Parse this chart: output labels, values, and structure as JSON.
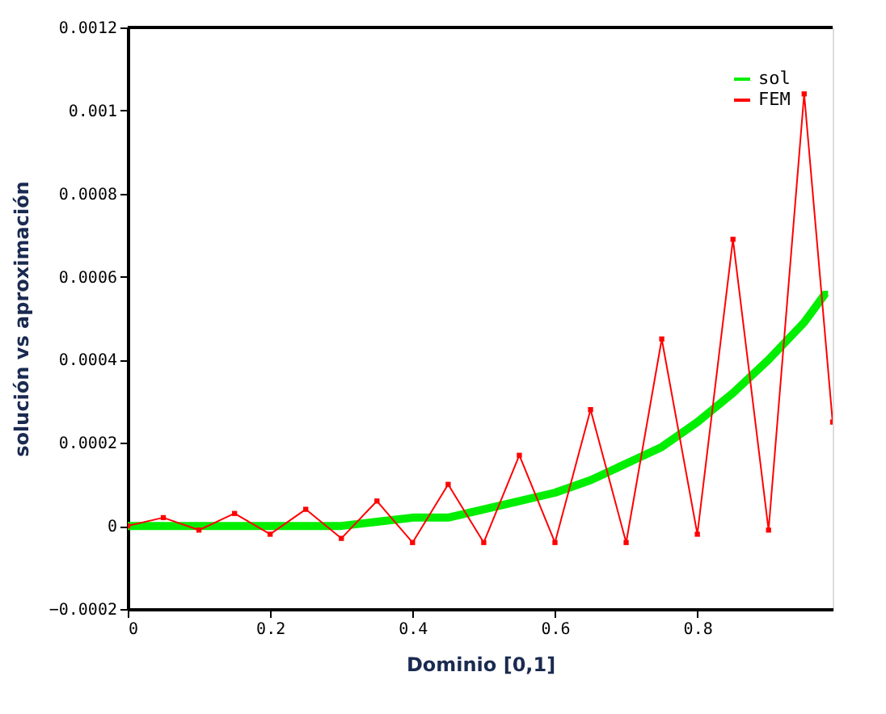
{
  "chart_data": {
    "type": "line",
    "xlabel": "Dominio [0,1]",
    "ylabel": "solución vs aproximación",
    "xlim": [
      0,
      0.99
    ],
    "xticks": [
      0,
      0.2,
      0.4,
      0.6,
      0.8
    ],
    "ylim": [
      -0.0002,
      0.0012
    ],
    "yticks": [
      -0.0002,
      0,
      0.0002,
      0.0004,
      0.0006,
      0.0008,
      0.001,
      0.0012
    ],
    "grid": false,
    "legend": "top right",
    "marker": "square",
    "series": [
      {
        "name": "sol",
        "color": "#00ee00",
        "x": [
          0,
          0.05,
          0.1,
          0.15,
          0.2,
          0.25,
          0.3,
          0.35,
          0.4,
          0.45,
          0.5,
          0.55,
          0.6,
          0.65,
          0.7,
          0.75,
          0.8,
          0.85,
          0.9,
          0.95,
          0.98
        ],
        "values": [
          0,
          0,
          0,
          0,
          0,
          0,
          0,
          1e-05,
          2e-05,
          2e-05,
          4e-05,
          6e-05,
          8e-05,
          0.00011,
          0.00015,
          0.00019,
          0.00025,
          0.00032,
          0.0004,
          0.00049,
          0.00056
        ]
      },
      {
        "name": "FEM",
        "color": "#ff0000",
        "x": [
          0,
          0.05,
          0.1,
          0.15,
          0.2,
          0.25,
          0.3,
          0.35,
          0.4,
          0.45,
          0.5,
          0.55,
          0.6,
          0.65,
          0.7,
          0.75,
          0.8,
          0.85,
          0.9,
          0.95,
          0.99
        ],
        "values": [
          0,
          2e-05,
          -1e-05,
          3e-05,
          -2e-05,
          4e-05,
          -3e-05,
          6e-05,
          -4e-05,
          0.0001,
          -4e-05,
          0.00017,
          -4e-05,
          0.00028,
          -4e-05,
          0.00045,
          -2e-05,
          0.00069,
          -1e-05,
          0.00104,
          0.00025
        ]
      }
    ]
  }
}
